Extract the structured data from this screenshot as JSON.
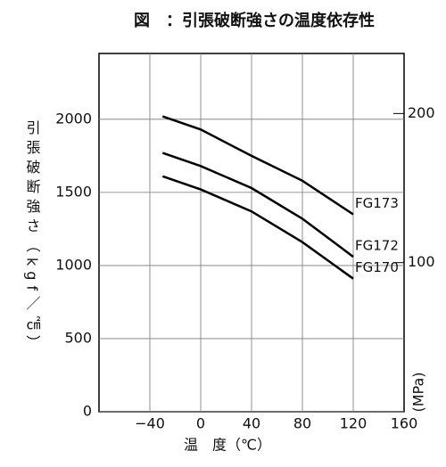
{
  "chart_data": {
    "type": "line",
    "title": "図　：引張破断強さの温度依存性",
    "x_label": "温　度（℃）",
    "y_label": "引張破断強さ（kgf／㎠）",
    "y2_label": "(MPa)",
    "x": [
      -30,
      0,
      40,
      80,
      120
    ],
    "series": [
      {
        "name": "FG173",
        "color": "#000000",
        "values": [
          2020,
          1930,
          1750,
          1580,
          1350
        ]
      },
      {
        "name": "FG172",
        "color": "#000000",
        "values": [
          1770,
          1680,
          1530,
          1320,
          1060
        ]
      },
      {
        "name": "FG170",
        "color": "#000000",
        "values": [
          1610,
          1520,
          1370,
          1160,
          910
        ]
      }
    ],
    "xlim": [
      -80,
      160
    ],
    "xticks": [
      {
        "value": -40,
        "label": "−40"
      },
      0,
      40,
      80,
      120,
      160
    ],
    "ylim": [
      0,
      2450
    ],
    "yticks": [
      0,
      500,
      1000,
      1500,
      2000
    ],
    "y2lim": [
      0,
      240.26
    ],
    "y2ticks": [
      100,
      200
    ],
    "grid": true
  }
}
